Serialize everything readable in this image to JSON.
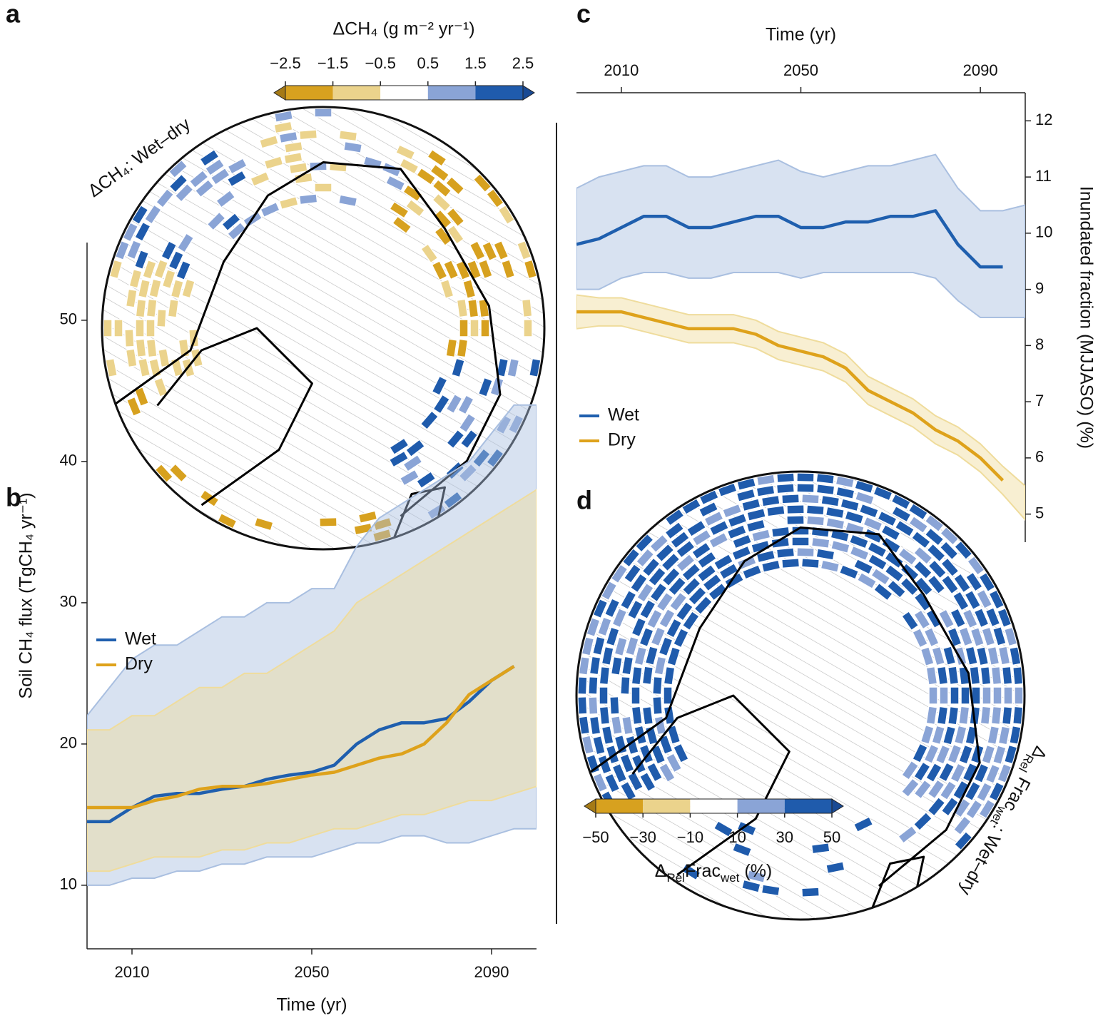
{
  "chart_data": [
    {
      "type": "map",
      "panel": "a",
      "title": "ΔCH₄: Wet–dry",
      "colorbar": {
        "label": "ΔCH₄ (g m⁻² yr⁻¹)",
        "ticks": [
          {
            "value": -2.5,
            "label": "−2.5"
          },
          {
            "value": -1.5,
            "label": "−1.5"
          },
          {
            "value": -0.5,
            "label": "−0.5"
          },
          0.5,
          1.5,
          2.5
        ],
        "colors": [
          "#d7a11f",
          "#ebd38c",
          "#ffffff",
          "#8aa4d6",
          "#1f5bac"
        ],
        "extend_colors": [
          "#a57a16",
          "#194a94"
        ]
      }
    },
    {
      "type": "line",
      "panel": "b",
      "xlabel": "Time (yr)",
      "ylabel": "Soil CH₄ flux (TgCH₄ yr⁻¹)",
      "x": [
        2000,
        2005,
        2010,
        2015,
        2020,
        2025,
        2030,
        2035,
        2040,
        2045,
        2050,
        2055,
        2060,
        2065,
        2070,
        2075,
        2080,
        2085,
        2090,
        2095,
        2100
      ],
      "xlim": [
        2000,
        2100
      ],
      "xticks": [
        2010,
        2050,
        2090
      ],
      "ylim": [
        5.5,
        55.5
      ],
      "yticks": [
        10,
        20,
        30,
        40,
        50
      ],
      "xaxis": "bottom",
      "yaxis": "left",
      "legend": "left",
      "series": [
        {
          "name": "Wet",
          "color": "#1f5fae",
          "band_color": "#a9bfe0",
          "values": [
            14.5,
            14.5,
            15.5,
            16.3,
            16.5,
            16.5,
            16.8,
            17,
            17.5,
            17.8,
            18,
            18.5,
            20,
            21,
            21.5,
            21.5,
            21.8,
            23,
            24.5,
            25.5,
            null
          ],
          "lower": [
            10,
            10,
            10.5,
            10.5,
            11,
            11,
            11.5,
            11.5,
            12,
            12,
            12,
            12.5,
            13,
            13,
            13.5,
            13.5,
            13,
            13,
            13.5,
            14,
            14
          ],
          "upper": [
            22,
            24,
            26,
            27,
            27,
            28,
            29,
            29,
            30,
            30,
            31,
            31,
            34,
            36,
            37,
            38,
            39,
            40,
            42,
            44,
            44
          ]
        },
        {
          "name": "Dry",
          "color": "#dea21b",
          "band_color": "#efdc9c",
          "values": [
            15.5,
            15.5,
            15.5,
            16,
            16.3,
            16.8,
            17,
            17,
            17.2,
            17.5,
            17.8,
            18,
            18.5,
            19,
            19.3,
            20,
            21.5,
            23.5,
            24.5,
            25.5,
            null
          ],
          "lower": [
            11,
            11,
            11.5,
            12,
            12,
            12,
            12.5,
            12.5,
            13,
            13,
            13.5,
            14,
            14,
            14.5,
            15,
            15,
            15.5,
            16,
            16,
            16.5,
            17
          ],
          "upper": [
            21,
            21,
            22,
            22,
            23,
            24,
            24,
            25,
            25,
            26,
            27,
            28,
            30,
            31,
            32,
            33,
            34,
            35,
            36,
            37,
            38
          ]
        }
      ]
    },
    {
      "type": "line",
      "panel": "c",
      "xlabel": "Time (yr)",
      "ylabel": "Inundated fraction (MJJASO) (%)",
      "x": [
        2000,
        2005,
        2010,
        2015,
        2020,
        2025,
        2030,
        2035,
        2040,
        2045,
        2050,
        2055,
        2060,
        2065,
        2070,
        2075,
        2080,
        2085,
        2090,
        2095,
        2100
      ],
      "xlim": [
        2000,
        2100
      ],
      "xticks": [
        2010,
        2050,
        2090
      ],
      "ylim": [
        4.5,
        12.5
      ],
      "yticks": [
        5,
        6,
        7,
        8,
        9,
        10,
        11,
        12
      ],
      "xaxis": "top",
      "yaxis": "right",
      "legend": "left",
      "series": [
        {
          "name": "Wet",
          "color": "#1f5fae",
          "band_color": "#a9bfe0",
          "values": [
            9.8,
            9.9,
            10.1,
            10.3,
            10.3,
            10.1,
            10.1,
            10.2,
            10.3,
            10.3,
            10.1,
            10.1,
            10.2,
            10.2,
            10.3,
            10.3,
            10.4,
            9.8,
            9.4,
            9.4,
            null
          ],
          "lower": [
            9,
            9,
            9.2,
            9.3,
            9.3,
            9.2,
            9.2,
            9.3,
            9.3,
            9.3,
            9.2,
            9.3,
            9.3,
            9.3,
            9.3,
            9.3,
            9.2,
            8.8,
            8.5,
            8.5,
            8.5
          ],
          "upper": [
            10.8,
            11,
            11.1,
            11.2,
            11.2,
            11,
            11,
            11.1,
            11.2,
            11.3,
            11.1,
            11,
            11.1,
            11.2,
            11.2,
            11.3,
            11.4,
            10.8,
            10.4,
            10.4,
            10.5
          ]
        },
        {
          "name": "Dry",
          "color": "#dea21b",
          "band_color": "#efdc9c",
          "values": [
            8.6,
            8.6,
            8.6,
            8.5,
            8.4,
            8.3,
            8.3,
            8.3,
            8.2,
            8.0,
            7.9,
            7.8,
            7.6,
            7.2,
            7.0,
            6.8,
            6.5,
            6.3,
            6.0,
            5.6,
            null
          ],
          "lower": [
            8.3,
            8.35,
            8.35,
            8.25,
            8.15,
            8.05,
            8.05,
            8.05,
            7.95,
            7.75,
            7.65,
            7.55,
            7.35,
            6.95,
            6.75,
            6.55,
            6.25,
            6.05,
            5.75,
            5.35,
            4.9
          ],
          "upper": [
            8.9,
            8.85,
            8.85,
            8.75,
            8.65,
            8.55,
            8.55,
            8.55,
            8.45,
            8.25,
            8.15,
            8.05,
            7.85,
            7.45,
            7.25,
            7.05,
            6.75,
            6.55,
            6.25,
            5.85,
            5.5
          ]
        }
      ]
    },
    {
      "type": "map",
      "panel": "d",
      "title": [
        "Δ",
        "Rel",
        " Frac",
        "wet",
        ": Wet–dry"
      ],
      "colorbar": {
        "label": [
          "Δ",
          "Rel",
          "Frac",
          "wet",
          " (%)"
        ],
        "ticks": [
          {
            "value": -50,
            "label": "−50"
          },
          {
            "value": -30,
            "label": "−30"
          },
          {
            "value": -10,
            "label": "−10"
          },
          10,
          30,
          50
        ],
        "colors": [
          "#d7a11f",
          "#ebd38c",
          "#ffffff",
          "#8aa4d6",
          "#1f5bac"
        ],
        "extend_colors": [
          "#a57a16",
          "#194a94"
        ]
      }
    }
  ]
}
